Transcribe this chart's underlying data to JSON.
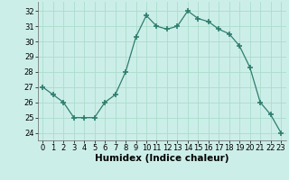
{
  "x": [
    0,
    1,
    2,
    3,
    4,
    5,
    6,
    7,
    8,
    9,
    10,
    11,
    12,
    13,
    14,
    15,
    16,
    17,
    18,
    19,
    20,
    21,
    22,
    23
  ],
  "y": [
    27.0,
    26.5,
    26.0,
    25.0,
    25.0,
    25.0,
    26.0,
    26.5,
    28.0,
    30.3,
    31.7,
    31.0,
    30.8,
    31.0,
    32.0,
    31.5,
    31.3,
    30.8,
    30.5,
    29.7,
    28.3,
    26.0,
    25.2,
    24.0
  ],
  "line_color": "#2e7d6e",
  "marker": "+",
  "marker_size": 4,
  "marker_lw": 1.2,
  "bg_color": "#cceee8",
  "grid_color": "#aaddcc",
  "xlabel": "Humidex (Indice chaleur)",
  "ylim": [
    23.5,
    32.6
  ],
  "xlim": [
    -0.5,
    23.5
  ],
  "yticks": [
    24,
    25,
    26,
    27,
    28,
    29,
    30,
    31,
    32
  ],
  "xticks": [
    0,
    1,
    2,
    3,
    4,
    5,
    6,
    7,
    8,
    9,
    10,
    11,
    12,
    13,
    14,
    15,
    16,
    17,
    18,
    19,
    20,
    21,
    22,
    23
  ],
  "tick_fontsize": 6,
  "xlabel_fontsize": 7.5
}
